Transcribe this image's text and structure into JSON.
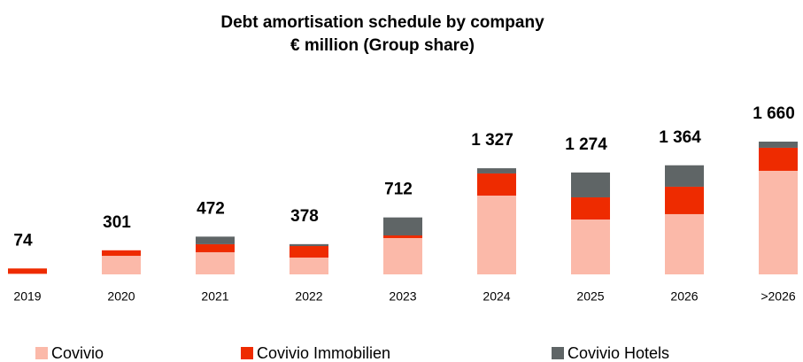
{
  "chart_data": {
    "type": "stacked_bar",
    "title": "Debt amortisation schedule by company",
    "subtitle": "€ million (Group share)",
    "categories": [
      "2019",
      "2020",
      "2021",
      "2022",
      "2023",
      "2024",
      "2025",
      "2026",
      ">2026"
    ],
    "series": [
      {
        "name": "Covivio",
        "color": "#fbb9a9",
        "values": [
          10,
          232,
          277,
          210,
          454,
          985,
          686,
          753,
          1295
        ]
      },
      {
        "name": "Covivio Immobilien",
        "color": "#ee2b00",
        "values": [
          64,
          69,
          100,
          144,
          33,
          277,
          277,
          343,
          288
        ]
      },
      {
        "name": "Covivio Hotels",
        "color": "#5f6566",
        "values": [
          0,
          0,
          95,
          24,
          225,
          65,
          311,
          268,
          77
        ]
      }
    ],
    "totals": [
      74,
      301,
      472,
      378,
      712,
      1327,
      1274,
      1364,
      1660
    ],
    "total_labels": [
      "74",
      "301",
      "472",
      "378",
      "712",
      "1 327",
      "1 274",
      "1 364",
      "1 660"
    ]
  }
}
